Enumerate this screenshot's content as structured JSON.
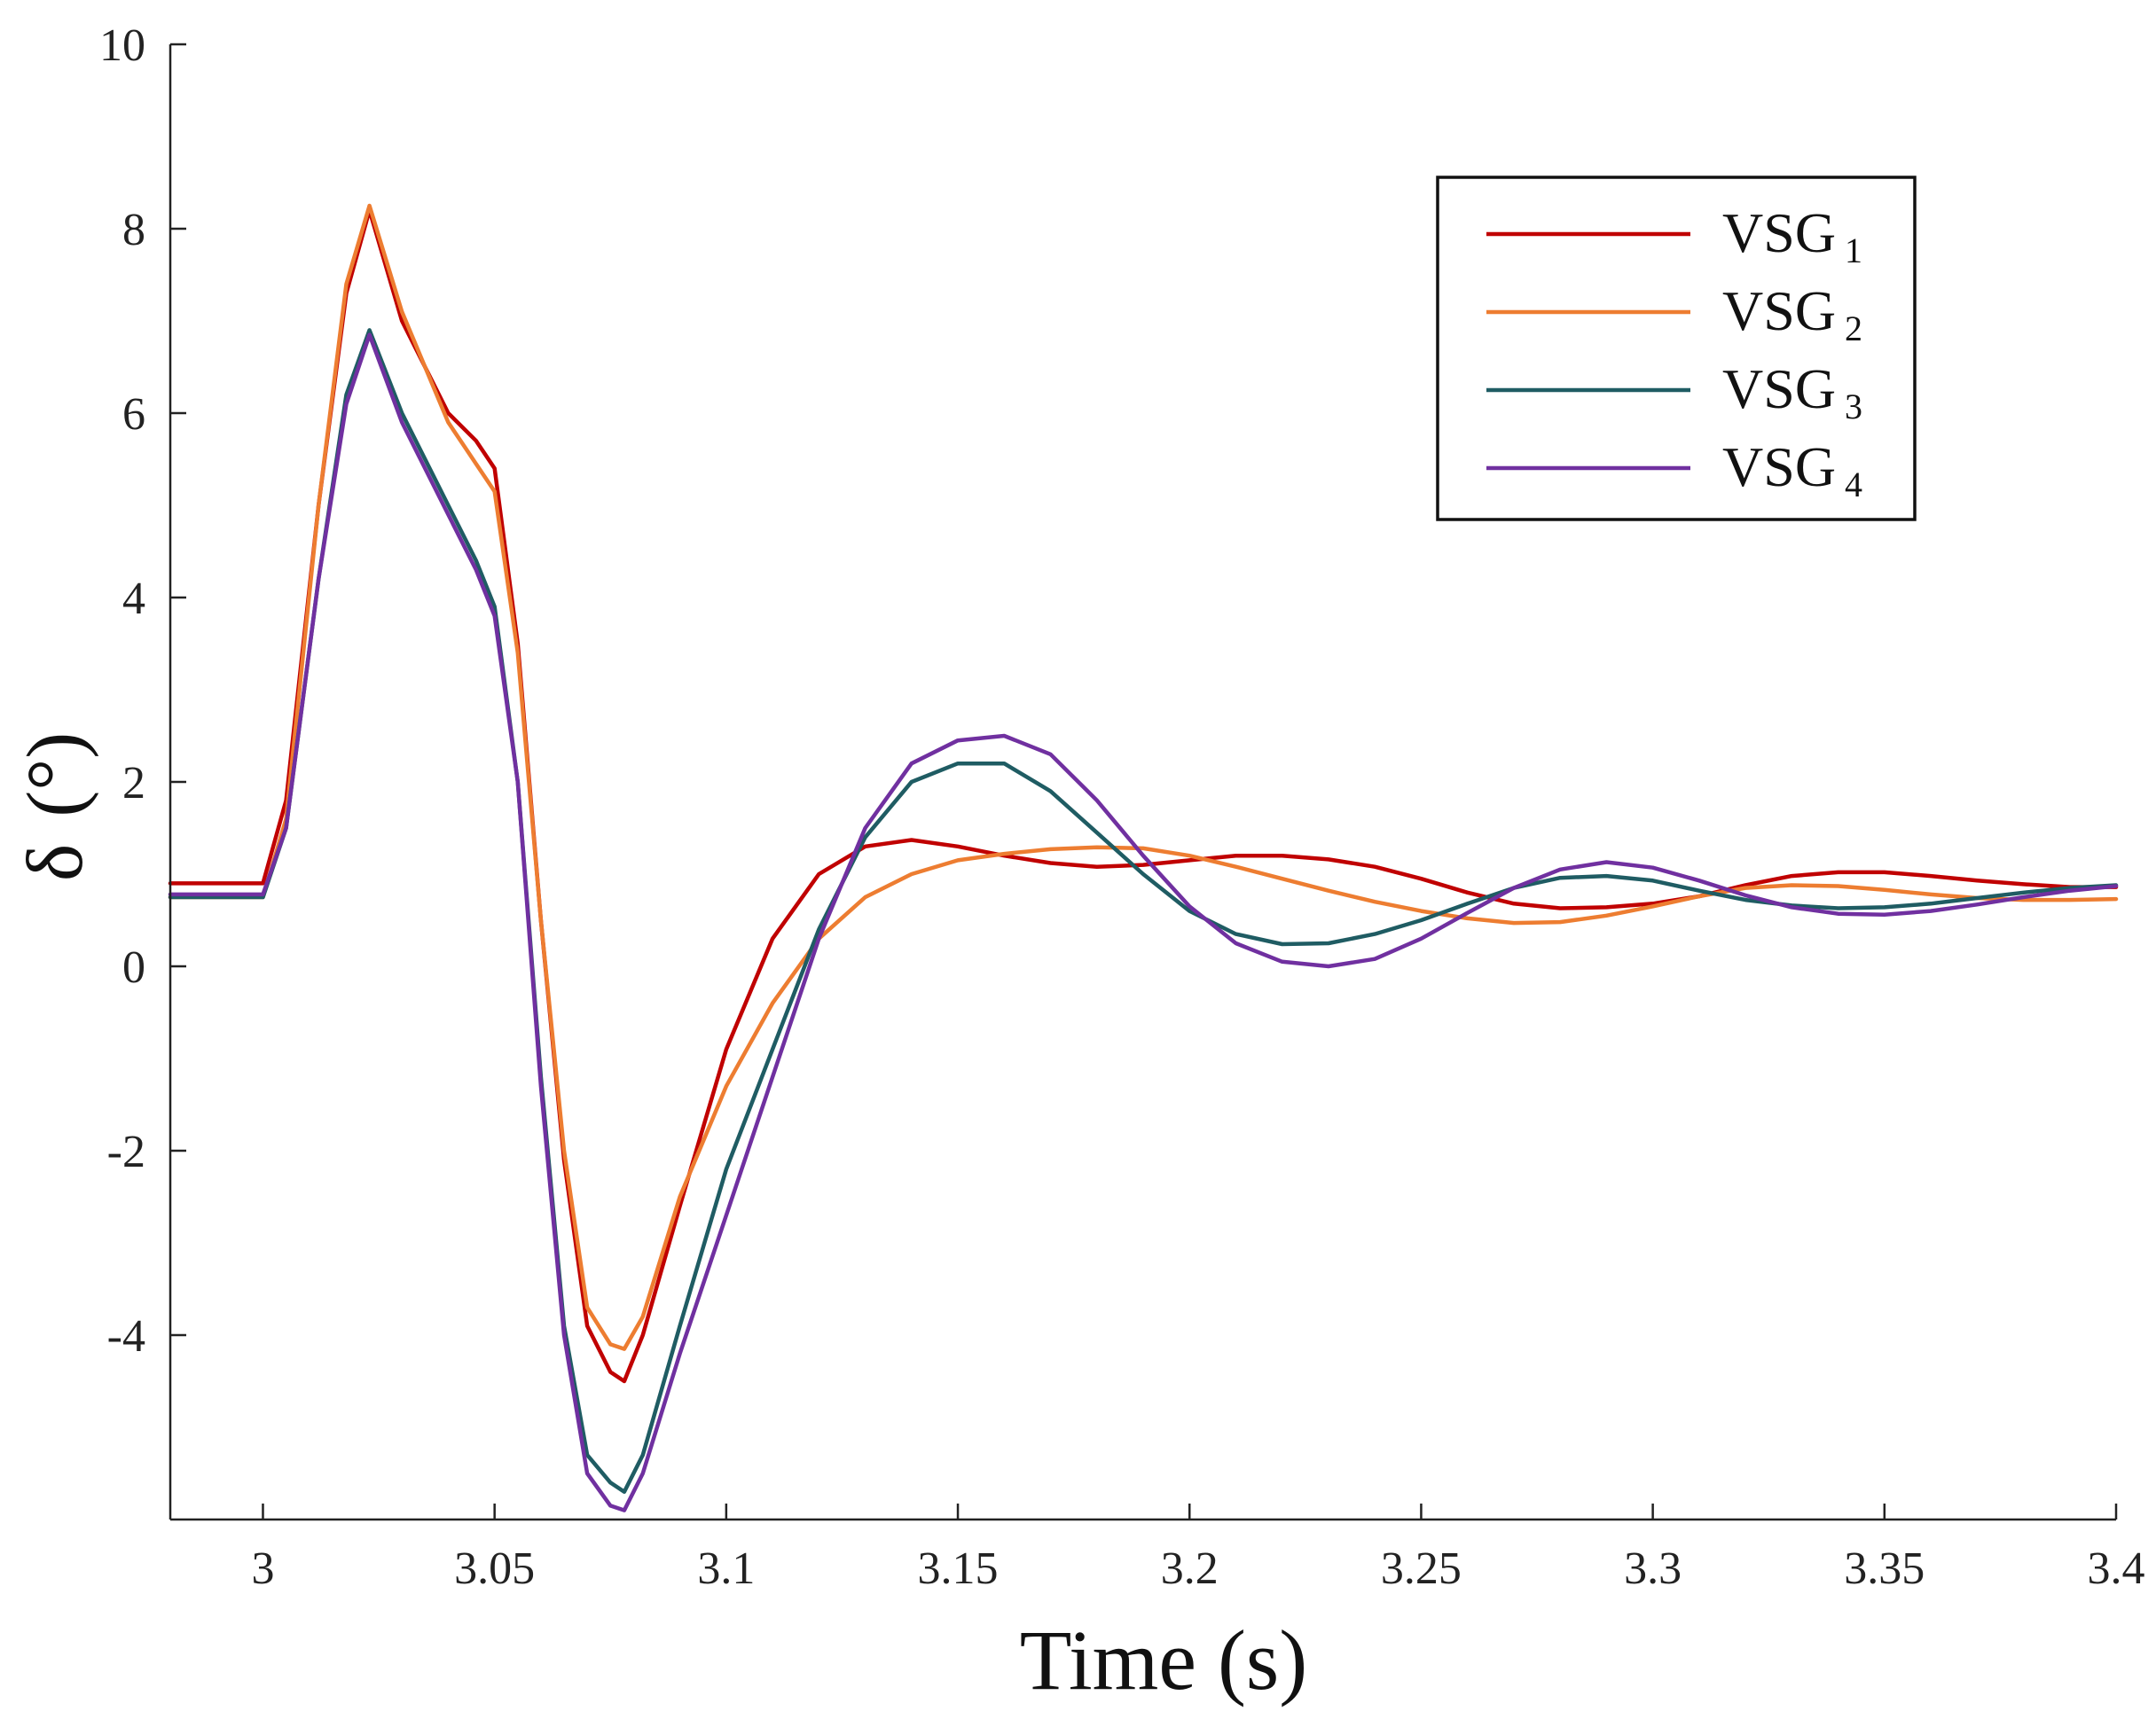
{
  "chart_data": {
    "type": "line",
    "title": "",
    "xlabel": "Time (s)",
    "ylabel_symbol": "δ",
    "ylabel_unit": "(°)",
    "xlim": [
      2.98,
      3.4
    ],
    "ylim": [
      -6,
      10
    ],
    "xticks": [
      3,
      3.05,
      3.1,
      3.15,
      3.2,
      3.25,
      3.3,
      3.35,
      3.4
    ],
    "xtick_labels": [
      "3",
      "3.05",
      "3.1",
      "3.15",
      "3.2",
      "3.25",
      "3.3",
      "3.35",
      "3.4"
    ],
    "yticks": [
      -4,
      -2,
      0,
      2,
      4,
      6,
      8,
      10
    ],
    "ytick_labels": [
      "-4",
      "-2",
      "0",
      "2",
      "4",
      "6",
      "8",
      "10"
    ],
    "grid": false,
    "legend_position": "top-right",
    "series": [
      {
        "name": "VSG",
        "sub": "1",
        "color": "#c00000",
        "x": [
          2.98,
          3.0,
          3.005,
          3.012,
          3.018,
          3.023,
          3.03,
          3.04,
          3.046,
          3.05,
          3.055,
          3.06,
          3.065,
          3.07,
          3.075,
          3.078,
          3.082,
          3.09,
          3.1,
          3.11,
          3.12,
          3.13,
          3.14,
          3.15,
          3.16,
          3.17,
          3.18,
          3.19,
          3.2,
          3.21,
          3.22,
          3.23,
          3.24,
          3.25,
          3.26,
          3.27,
          3.28,
          3.29,
          3.3,
          3.31,
          3.32,
          3.33,
          3.34,
          3.35,
          3.36,
          3.37,
          3.38,
          3.39,
          3.4
        ],
        "y": [
          0.9,
          0.9,
          1.8,
          5.0,
          7.3,
          8.2,
          7.0,
          6.0,
          5.7,
          5.4,
          3.5,
          0.5,
          -2.1,
          -3.9,
          -4.4,
          -4.5,
          -4.0,
          -2.6,
          -0.9,
          0.3,
          1.0,
          1.3,
          1.37,
          1.3,
          1.2,
          1.12,
          1.08,
          1.1,
          1.15,
          1.2,
          1.2,
          1.16,
          1.08,
          0.95,
          0.8,
          0.68,
          0.63,
          0.64,
          0.68,
          0.76,
          0.88,
          0.98,
          1.02,
          1.02,
          0.98,
          0.93,
          0.89,
          0.86,
          0.86
        ]
      },
      {
        "name": "VSG",
        "sub": "2",
        "color": "#ed7d31",
        "x": [
          2.98,
          3.0,
          3.005,
          3.012,
          3.018,
          3.023,
          3.03,
          3.04,
          3.046,
          3.05,
          3.055,
          3.06,
          3.065,
          3.07,
          3.075,
          3.078,
          3.082,
          3.09,
          3.1,
          3.11,
          3.12,
          3.13,
          3.14,
          3.15,
          3.16,
          3.17,
          3.18,
          3.19,
          3.2,
          3.21,
          3.22,
          3.23,
          3.24,
          3.25,
          3.26,
          3.27,
          3.28,
          3.29,
          3.3,
          3.31,
          3.32,
          3.33,
          3.34,
          3.35,
          3.36,
          3.37,
          3.38,
          3.39,
          3.4
        ],
        "y": [
          0.75,
          0.75,
          1.6,
          5.0,
          7.4,
          8.25,
          7.1,
          5.9,
          5.45,
          5.15,
          3.4,
          0.5,
          -2.0,
          -3.7,
          -4.1,
          -4.15,
          -3.8,
          -2.5,
          -1.3,
          -0.4,
          0.3,
          0.75,
          1.0,
          1.15,
          1.22,
          1.27,
          1.29,
          1.28,
          1.2,
          1.08,
          0.95,
          0.82,
          0.7,
          0.6,
          0.52,
          0.47,
          0.48,
          0.55,
          0.65,
          0.76,
          0.85,
          0.88,
          0.87,
          0.83,
          0.78,
          0.74,
          0.72,
          0.72,
          0.73
        ]
      },
      {
        "name": "VSG",
        "sub": "3",
        "color": "#1f5c63",
        "x": [
          2.98,
          3.0,
          3.005,
          3.012,
          3.018,
          3.023,
          3.03,
          3.04,
          3.046,
          3.05,
          3.055,
          3.06,
          3.065,
          3.07,
          3.075,
          3.078,
          3.082,
          3.09,
          3.1,
          3.11,
          3.12,
          3.13,
          3.14,
          3.15,
          3.16,
          3.17,
          3.18,
          3.19,
          3.2,
          3.21,
          3.22,
          3.23,
          3.24,
          3.25,
          3.26,
          3.27,
          3.28,
          3.29,
          3.3,
          3.31,
          3.32,
          3.33,
          3.34,
          3.35,
          3.36,
          3.37,
          3.38,
          3.39,
          3.4
        ],
        "y": [
          0.75,
          0.75,
          1.5,
          4.2,
          6.2,
          6.9,
          6.0,
          5.0,
          4.4,
          3.9,
          2.0,
          -1.2,
          -3.9,
          -5.3,
          -5.6,
          -5.7,
          -5.3,
          -3.9,
          -2.2,
          -0.9,
          0.4,
          1.4,
          2.0,
          2.2,
          2.2,
          1.9,
          1.45,
          1.0,
          0.6,
          0.35,
          0.24,
          0.25,
          0.35,
          0.5,
          0.68,
          0.85,
          0.96,
          0.98,
          0.93,
          0.82,
          0.72,
          0.66,
          0.63,
          0.64,
          0.68,
          0.74,
          0.8,
          0.85,
          0.88
        ]
      },
      {
        "name": "VSG",
        "sub": "4",
        "color": "#7030a0",
        "x": [
          2.98,
          3.0,
          3.005,
          3.012,
          3.018,
          3.023,
          3.03,
          3.04,
          3.046,
          3.05,
          3.055,
          3.06,
          3.065,
          3.07,
          3.075,
          3.078,
          3.082,
          3.09,
          3.1,
          3.11,
          3.12,
          3.13,
          3.14,
          3.15,
          3.16,
          3.17,
          3.18,
          3.19,
          3.2,
          3.21,
          3.22,
          3.23,
          3.24,
          3.25,
          3.26,
          3.27,
          3.28,
          3.29,
          3.3,
          3.31,
          3.32,
          3.33,
          3.34,
          3.35,
          3.36,
          3.37,
          3.38,
          3.39,
          3.4
        ],
        "y": [
          0.78,
          0.78,
          1.5,
          4.2,
          6.1,
          6.85,
          5.9,
          4.9,
          4.3,
          3.8,
          2.0,
          -1.3,
          -4.0,
          -5.5,
          -5.85,
          -5.9,
          -5.5,
          -4.2,
          -2.7,
          -1.2,
          0.3,
          1.5,
          2.2,
          2.45,
          2.5,
          2.3,
          1.8,
          1.2,
          0.65,
          0.25,
          0.05,
          0.0,
          0.08,
          0.3,
          0.58,
          0.85,
          1.05,
          1.13,
          1.07,
          0.93,
          0.77,
          0.64,
          0.57,
          0.56,
          0.6,
          0.67,
          0.75,
          0.82,
          0.87
        ]
      }
    ]
  }
}
